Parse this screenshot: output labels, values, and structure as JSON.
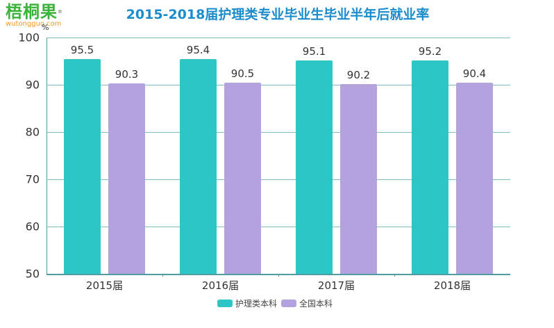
{
  "logo": {
    "cn": "梧桐果",
    "reg": "®",
    "en": "wutongguo.com"
  },
  "colors": {
    "series1": "#2cc6c6",
    "series2": "#b4a2df",
    "title": "#1a8ccc"
  },
  "chart_data": {
    "type": "bar",
    "title": "2015-2018届护理类专业毕业生毕业半年后就业率",
    "xlabel": "",
    "ylabel": "%",
    "ylim": [
      50,
      100
    ],
    "yticks": [
      50,
      60,
      70,
      80,
      90,
      100
    ],
    "grid": true,
    "legend_position": "bottom",
    "categories": [
      "2015届",
      "2016届",
      "2017届",
      "2018届"
    ],
    "series": [
      {
        "name": "护理类本科",
        "color": "#2cc6c6",
        "values": [
          95.5,
          95.4,
          95.1,
          95.2
        ]
      },
      {
        "name": "全国本科",
        "color": "#b4a2df",
        "values": [
          90.3,
          90.5,
          90.2,
          90.4
        ]
      }
    ]
  }
}
